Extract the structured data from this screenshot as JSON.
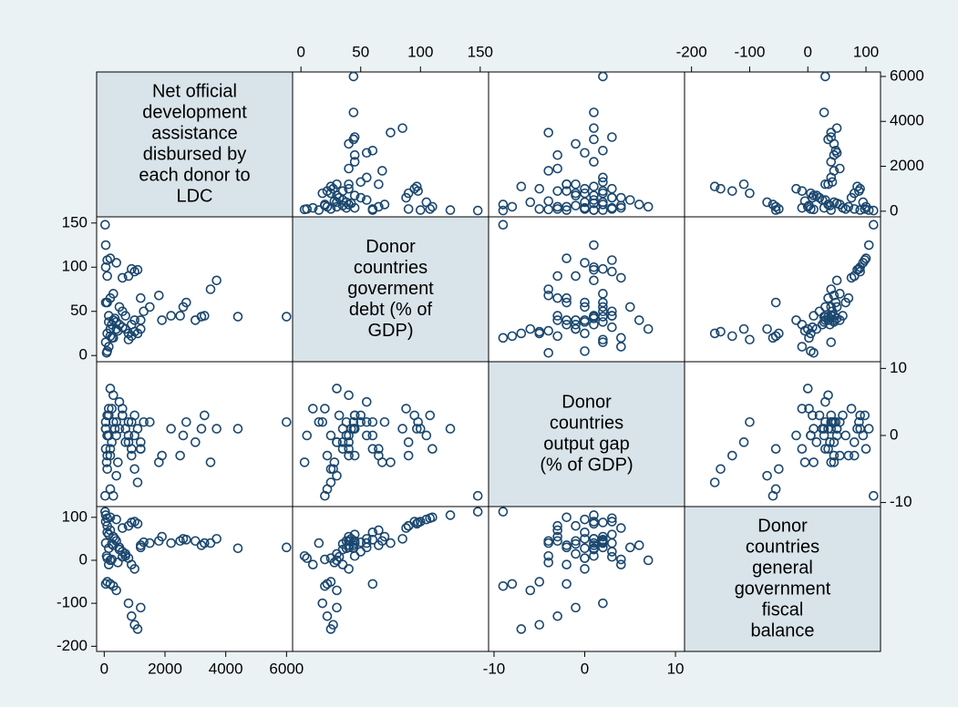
{
  "chart_data": {
    "type": "scatter_matrix",
    "marker_color": "#1a476f",
    "diagonal_color": "#d9e4ea",
    "variables": [
      {
        "label": [
          "Net official",
          "development",
          "assistance",
          "disbursed by",
          "each donor to",
          "LDC"
        ],
        "lim": [
          -250,
          6200
        ],
        "ticks": [
          0,
          2000,
          4000,
          6000
        ],
        "values": [
          6000,
          4400,
          3700,
          3500,
          3300,
          3200,
          3000,
          2700,
          2600,
          2500,
          2200,
          1900,
          1800,
          1500,
          1200,
          1100,
          1000,
          900,
          800,
          600,
          400,
          200,
          100,
          50,
          30,
          1100,
          1000,
          900,
          800,
          1200,
          300,
          200,
          100,
          50,
          400,
          1000,
          900,
          700,
          600,
          500,
          300,
          200,
          150,
          100,
          80,
          50,
          400,
          350,
          250,
          150,
          100,
          200,
          300,
          500,
          700,
          800,
          1200,
          1300,
          50,
          100,
          250,
          450,
          600,
          150
        ]
      },
      {
        "label": [
          "Donor",
          "countries",
          "goverment",
          "debt (% of",
          "GDP)"
        ],
        "lim": [
          -7,
          157
        ],
        "ticks": [
          0,
          50,
          100,
          150
        ],
        "values": [
          44,
          44,
          85,
          75,
          45,
          44,
          40,
          60,
          55,
          45,
          45,
          40,
          68,
          55,
          65,
          97,
          95,
          98,
          90,
          88,
          105,
          110,
          108,
          125,
          148,
          25,
          27,
          22,
          18,
          30,
          20,
          22,
          25,
          60,
          30,
          40,
          35,
          45,
          50,
          55,
          40,
          30,
          10,
          5,
          3,
          15,
          38,
          42,
          35,
          45,
          60,
          65,
          70,
          35,
          30,
          25,
          40,
          50,
          100,
          90,
          20,
          28,
          32,
          38
        ]
      },
      {
        "label": [
          "Donor",
          "countries",
          "output gap",
          "(% of GDP)"
        ],
        "lim": [
          -10.6,
          11
        ],
        "ticks": [
          -10,
          0,
          10
        ],
        "values": [
          2,
          1,
          1,
          -4,
          3,
          1,
          -1,
          2,
          0,
          -3,
          1,
          -3,
          -4,
          2,
          -2,
          1,
          3,
          2,
          -1,
          4,
          0,
          -2,
          3,
          1,
          -9,
          -7,
          -5,
          -3,
          2,
          -1,
          -9,
          -8,
          -5,
          -2,
          -6,
          0,
          -2,
          1,
          3,
          5,
          6,
          7,
          4,
          0,
          -4,
          2,
          2,
          1,
          -1,
          3,
          0,
          -3,
          2,
          1,
          -1,
          0,
          -2,
          2,
          1,
          -3,
          4,
          -4,
          3,
          0
        ]
      },
      {
        "label": [
          "Donor",
          "countries",
          "general",
          "government",
          "fiscal",
          "balance"
        ],
        "lim": [
          -212,
          125
        ],
        "ticks": [
          -200,
          -100,
          0,
          100
        ],
        "values": [
          30,
          28,
          50,
          40,
          40,
          35,
          45,
          48,
          50,
          45,
          40,
          55,
          45,
          40,
          35,
          85,
          90,
          88,
          80,
          75,
          95,
          100,
          98,
          105,
          113,
          -160,
          -150,
          -130,
          -100,
          -110,
          -60,
          -55,
          -50,
          -55,
          -70,
          -20,
          -10,
          10,
          20,
          30,
          35,
          0,
          -10,
          5,
          10,
          40,
          45,
          50,
          38,
          60,
          65,
          70,
          55,
          25,
          15,
          5,
          30,
          42,
          90,
          80,
          2,
          -5,
          8,
          28
        ]
      }
    ]
  }
}
